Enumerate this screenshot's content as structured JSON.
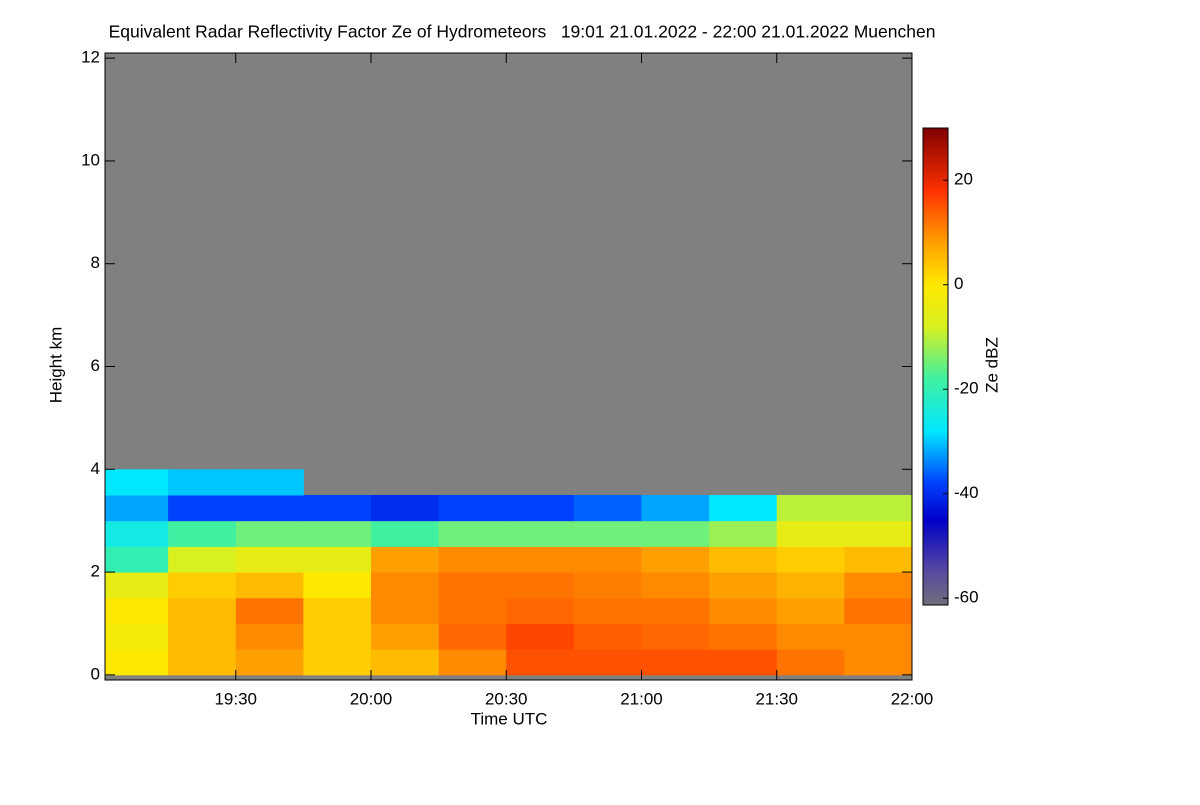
{
  "chart_data": {
    "type": "heatmap",
    "title": "Equivalent Radar Reflectivity Factor Ze of Hydrometeors   19:01 21.01.2022 - 22:00 21.01.2022 Muenchen",
    "xlabel": "Time UTC",
    "ylabel": "Height km",
    "colorbar_label": "Ze dBZ",
    "xlim": [
      "19:01",
      "22:00"
    ],
    "xticks": [
      "19:30",
      "20:00",
      "20:30",
      "21:00",
      "21:30",
      "22:00"
    ],
    "ylim": [
      -0.1,
      12.1
    ],
    "yticks": [
      0,
      2,
      4,
      6,
      8,
      10,
      12
    ],
    "x": [
      "19:01",
      "19:15",
      "19:30",
      "19:45",
      "20:00",
      "20:15",
      "20:30",
      "20:45",
      "21:00",
      "21:15",
      "21:30",
      "21:45",
      "22:00"
    ],
    "y": [
      0,
      0.5,
      1,
      1.5,
      2,
      2.5,
      3,
      3.5,
      4
    ],
    "z": [
      [
        0,
        5,
        8,
        3,
        5,
        10,
        15,
        15,
        15,
        15,
        12,
        10
      ],
      [
        -2,
        5,
        10,
        3,
        8,
        13,
        16,
        14,
        13,
        12,
        10,
        10
      ],
      [
        0,
        5,
        12,
        3,
        10,
        12,
        13,
        12,
        12,
        10,
        8,
        12
      ],
      [
        -5,
        3,
        5,
        0,
        10,
        12,
        12,
        11,
        10,
        8,
        6,
        10
      ],
      [
        -20,
        -8,
        -5,
        -5,
        8,
        10,
        10,
        10,
        8,
        5,
        3,
        5
      ],
      [
        -25,
        -18,
        -15,
        -15,
        -18,
        -15,
        -15,
        -15,
        -15,
        -12,
        -5,
        -5
      ],
      [
        -32,
        -38,
        -38,
        -38,
        -40,
        -38,
        -38,
        -36,
        -32,
        -28,
        -10,
        -10
      ],
      [
        -28,
        -30,
        -30,
        null,
        null,
        null,
        null,
        null,
        null,
        null,
        null,
        null
      ]
    ],
    "zlim": [
      -61.3,
      30
    ],
    "zticks": [
      -60,
      -40,
      -20,
      0,
      20
    ],
    "missing_color": "#808080",
    "colorscale": [
      [
        -61.3,
        "#6e6e78"
      ],
      [
        -55,
        "#5a4aa0"
      ],
      [
        -45,
        "#0000c8"
      ],
      [
        -38,
        "#0040ff"
      ],
      [
        -28,
        "#00e8ff"
      ],
      [
        -18,
        "#40f0a0"
      ],
      [
        -8,
        "#d8f020"
      ],
      [
        0,
        "#ffe800"
      ],
      [
        8,
        "#ffa000"
      ],
      [
        18,
        "#ff3000"
      ],
      [
        30,
        "#800000"
      ]
    ]
  }
}
